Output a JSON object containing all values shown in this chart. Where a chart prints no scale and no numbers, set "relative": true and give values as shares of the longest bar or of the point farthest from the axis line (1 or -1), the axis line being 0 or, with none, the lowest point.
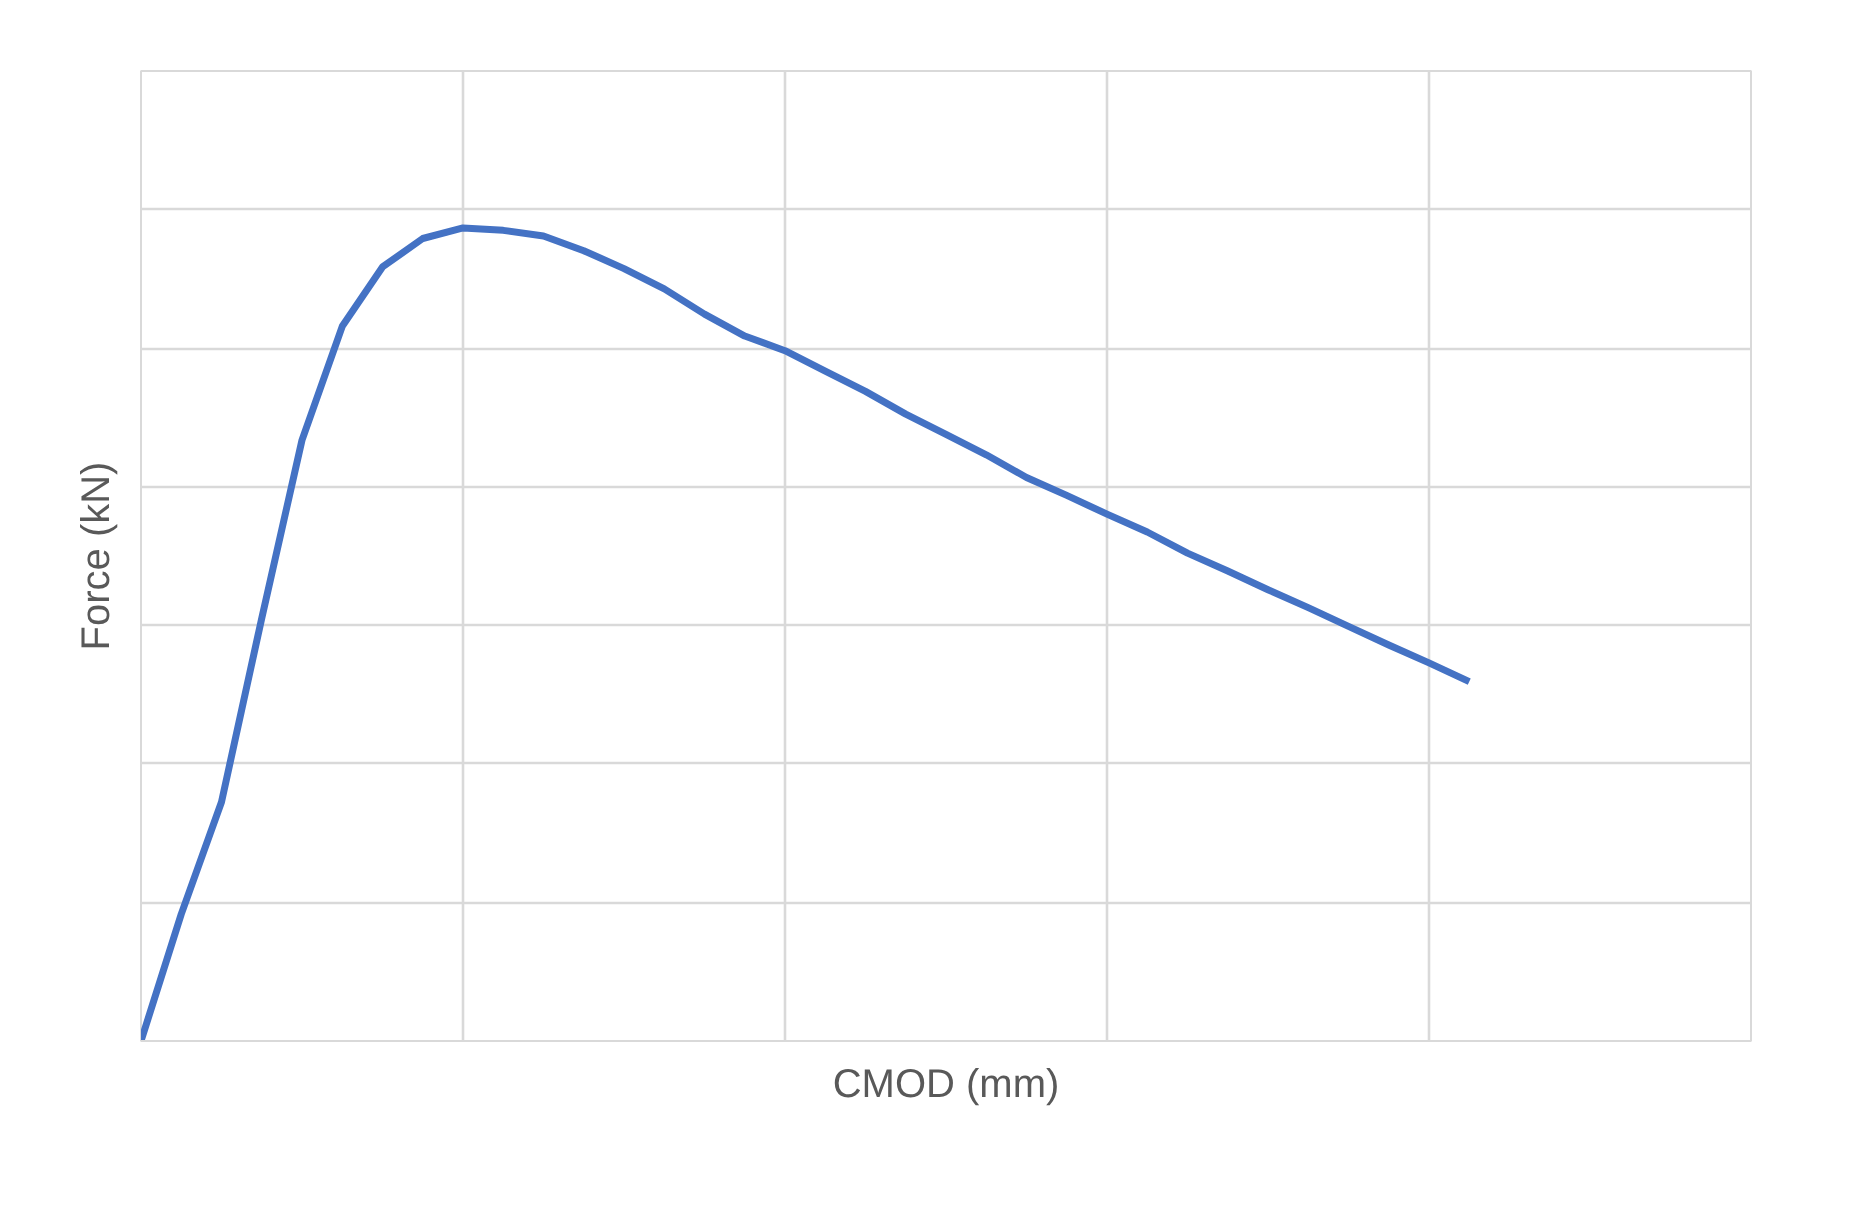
{
  "chart_data": {
    "type": "line",
    "relative": true,
    "xlabel": "CMOD (mm)",
    "ylabel": "Force (kN)",
    "grid": true,
    "line_style": "solid",
    "marker": "none",
    "categories": [
      null,
      null,
      null,
      null,
      null,
      null,
      null,
      null,
      null,
      null,
      null,
      null,
      null,
      null,
      null,
      null,
      null,
      null,
      null,
      null,
      null,
      null,
      null,
      null,
      null,
      null,
      null,
      null,
      null,
      null,
      null,
      null,
      null,
      null,
      null,
      null,
      null,
      null,
      null,
      null,
      null
    ],
    "series": [
      {
        "color": "#4472c4",
        "values": [
          0,
          0.156,
          0.294,
          0.52,
          0.739,
          0.879,
          0.952,
          0.987,
          1.0,
          0.997,
          0.99,
          0.972,
          0.95,
          0.925,
          0.894,
          0.867,
          0.849,
          0.824,
          0.799,
          0.771,
          0.746,
          0.721,
          0.693,
          0.671,
          0.648,
          0.626,
          0.6,
          0.578,
          0.555,
          0.533,
          0.51,
          0.487,
          0.465,
          0.442,
          null,
          null,
          null,
          null,
          null,
          null,
          null
        ]
      }
    ]
  }
}
